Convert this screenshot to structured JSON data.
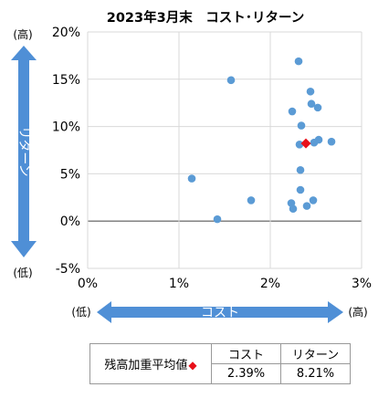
{
  "chart_data": {
    "type": "scatter",
    "title": "2023年3月末　コスト･リターン",
    "x_ticks": [
      "0%",
      "1%",
      "2%",
      "3%"
    ],
    "y_ticks": [
      "20%",
      "15%",
      "10%",
      "5%",
      "0%",
      "-5%"
    ],
    "xlim": [
      0,
      3
    ],
    "ylim": [
      -5,
      20
    ],
    "grid": true,
    "x_axis_label": "コスト",
    "y_axis_label": "リターン",
    "x_low_label": "(低)",
    "x_high_label": "(高)",
    "y_low_label": "(低)",
    "y_high_label": "(高)",
    "points": [
      {
        "x": 1.14,
        "y": 4.5
      },
      {
        "x": 1.42,
        "y": 0.2
      },
      {
        "x": 1.57,
        "y": 14.9
      },
      {
        "x": 1.79,
        "y": 2.2
      },
      {
        "x": 2.23,
        "y": 1.9
      },
      {
        "x": 2.24,
        "y": 11.6
      },
      {
        "x": 2.25,
        "y": 1.3
      },
      {
        "x": 2.31,
        "y": 16.9
      },
      {
        "x": 2.32,
        "y": 8.1
      },
      {
        "x": 2.33,
        "y": 5.4
      },
      {
        "x": 2.33,
        "y": 3.3
      },
      {
        "x": 2.34,
        "y": 10.1
      },
      {
        "x": 2.4,
        "y": 1.6
      },
      {
        "x": 2.44,
        "y": 13.7
      },
      {
        "x": 2.45,
        "y": 12.4
      },
      {
        "x": 2.47,
        "y": 2.2
      },
      {
        "x": 2.48,
        "y": 8.3
      },
      {
        "x": 2.52,
        "y": 12.0
      },
      {
        "x": 2.53,
        "y": 8.6
      },
      {
        "x": 2.67,
        "y": 8.4
      }
    ],
    "weighted_average": {
      "x": 2.39,
      "y": 8.21
    },
    "colors": {
      "points": "#5b9bd5",
      "average": "#e8101a",
      "arrows": "#4f8fd6",
      "zero_line": "#595959",
      "grid": "#d9d9d9"
    }
  },
  "summary_table": {
    "row_label": "残高加重平均値",
    "marker": "◆",
    "headers": [
      "コスト",
      "リターン"
    ],
    "values": [
      "2.39%",
      "8.21%"
    ]
  }
}
